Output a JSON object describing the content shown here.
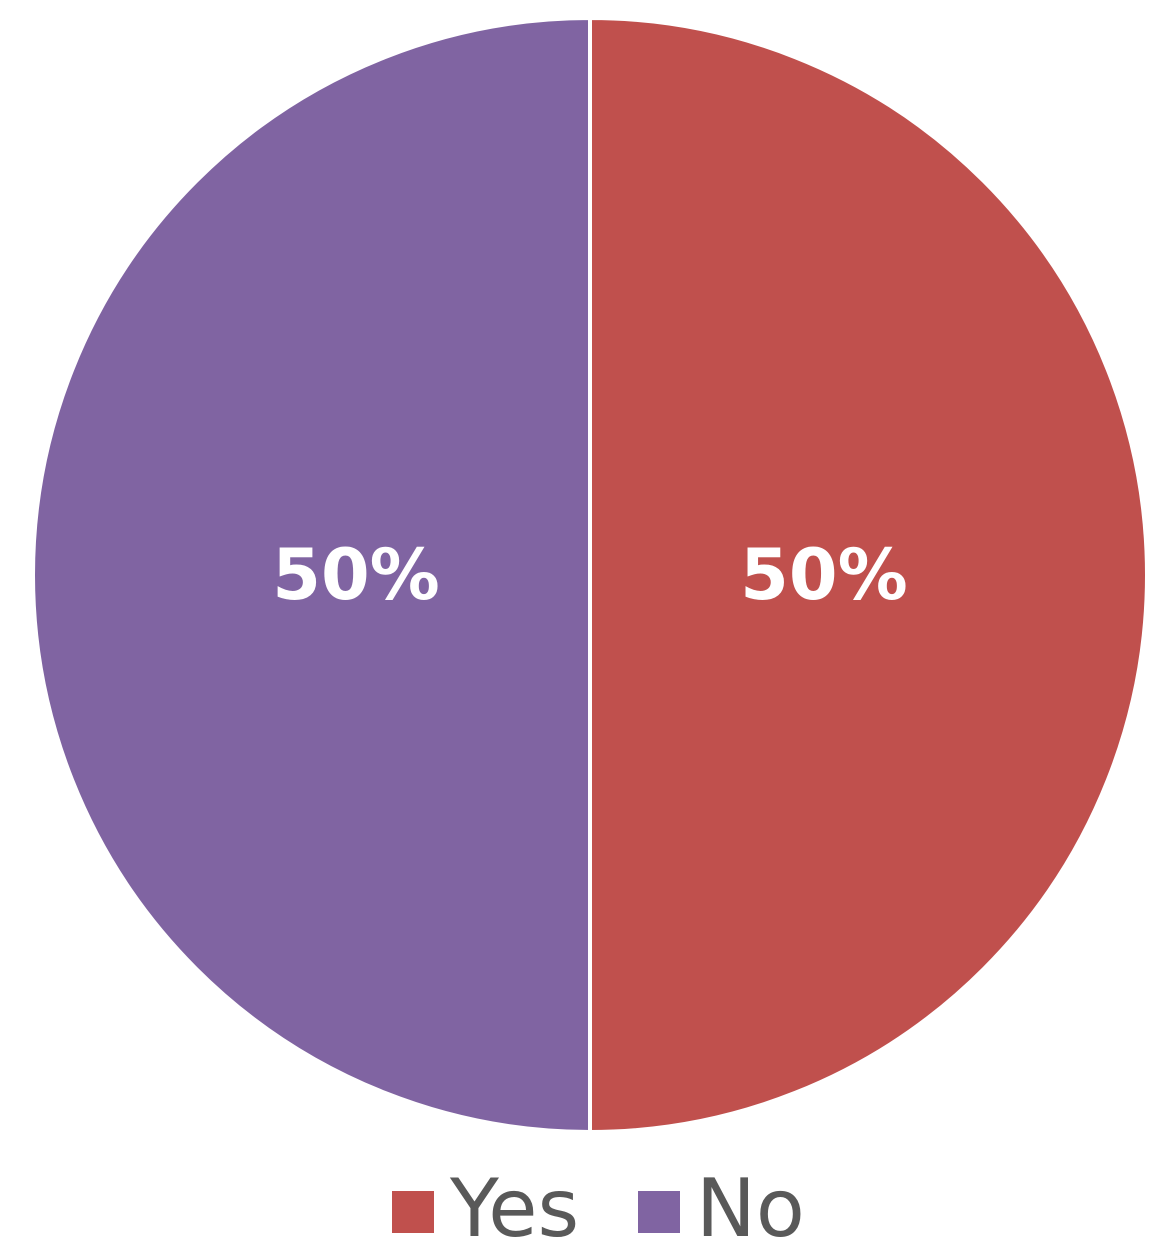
{
  "chart_data": {
    "type": "pie",
    "slices": [
      {
        "label": "Yes",
        "value": 50,
        "display": "50%",
        "color": "#C0504D"
      },
      {
        "label": "No",
        "value": 50,
        "display": "50%",
        "color": "#8064A2"
      }
    ],
    "legend": {
      "placement": "bottom",
      "entries": [
        {
          "label": "Yes",
          "color": "#C0504D"
        },
        {
          "label": "No",
          "color": "#8064A2"
        }
      ]
    }
  }
}
